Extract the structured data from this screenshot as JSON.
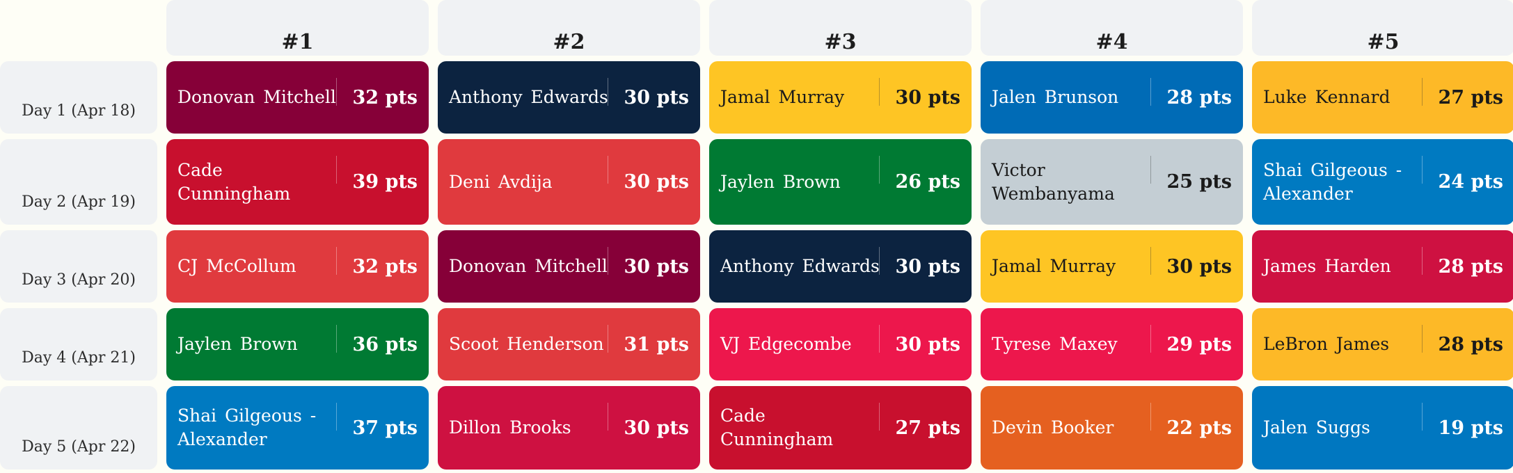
{
  "columns": [
    "#1",
    "#2",
    "#3",
    "#4",
    "#5"
  ],
  "rows": [
    {
      "day": "Day 1 (Apr 18)",
      "cells": [
        {
          "player": "Donovan Mitchell",
          "pts": "32 pts",
          "color": "#860038",
          "text_color": "dark"
        },
        {
          "player": "Anthony Edwards",
          "pts": "30 pts",
          "color": "#0c2340",
          "text_color": "dark"
        },
        {
          "player": "Jamal Murray",
          "pts": "30 pts",
          "color": "#fec524",
          "text_color": "light"
        },
        {
          "player": "Jalen Brunson",
          "pts": "28 pts",
          "color": "#006bb6",
          "text_color": "dark"
        },
        {
          "player": "Luke Kennard",
          "pts": "27 pts",
          "color": "#fdb927",
          "text_color": "light"
        }
      ]
    },
    {
      "day": "Day 2 (Apr 19)",
      "cells": [
        {
          "player": "Cade Cunningham",
          "pts": "39 pts",
          "color": "#c8102e",
          "text_color": "dark"
        },
        {
          "player": "Deni Avdija",
          "pts": "30 pts",
          "color": "#e03a3e",
          "text_color": "dark"
        },
        {
          "player": "Jaylen Brown",
          "pts": "26 pts",
          "color": "#007a33",
          "text_color": "dark"
        },
        {
          "player": "Victor Wembanyama",
          "pts": "25 pts",
          "color": "#c4ced4",
          "text_color": "light"
        },
        {
          "player": "Shai Gilgeous - Alexander",
          "pts": "24 pts",
          "color": "#007ac1",
          "text_color": "dark"
        }
      ]
    },
    {
      "day": "Day 3 (Apr 20)",
      "cells": [
        {
          "player": "CJ McCollum",
          "pts": "32 pts",
          "color": "#e03a3e",
          "text_color": "dark"
        },
        {
          "player": "Donovan Mitchell",
          "pts": "30 pts",
          "color": "#860038",
          "text_color": "dark"
        },
        {
          "player": "Anthony Edwards",
          "pts": "30 pts",
          "color": "#0c2340",
          "text_color": "dark"
        },
        {
          "player": "Jamal Murray",
          "pts": "30 pts",
          "color": "#fec524",
          "text_color": "light"
        },
        {
          "player": "James Harden",
          "pts": "28 pts",
          "color": "#ce1141",
          "text_color": "dark"
        }
      ]
    },
    {
      "day": "Day 4 (Apr 21)",
      "cells": [
        {
          "player": "Jaylen Brown",
          "pts": "36 pts",
          "color": "#007a33",
          "text_color": "dark"
        },
        {
          "player": "Scoot Henderson",
          "pts": "31 pts",
          "color": "#e03a3e",
          "text_color": "dark"
        },
        {
          "player": "VJ Edgecombe",
          "pts": "30 pts",
          "color": "#ed174c",
          "text_color": "dark"
        },
        {
          "player": "Tyrese Maxey",
          "pts": "29 pts",
          "color": "#ed174c",
          "text_color": "dark"
        },
        {
          "player": "LeBron James",
          "pts": "28 pts",
          "color": "#fdb927",
          "text_color": "light"
        }
      ]
    },
    {
      "day": "Day 5 (Apr 22)",
      "cells": [
        {
          "player": "Shai Gilgeous - Alexander",
          "pts": "37 pts",
          "color": "#007ac1",
          "text_color": "dark"
        },
        {
          "player": "Dillon Brooks",
          "pts": "30 pts",
          "color": "#ce1141",
          "text_color": "dark"
        },
        {
          "player": "Cade Cunningham",
          "pts": "27 pts",
          "color": "#c8102e",
          "text_color": "dark"
        },
        {
          "player": "Devin Booker",
          "pts": "22 pts",
          "color": "#e56020",
          "text_color": "dark"
        },
        {
          "player": "Jalen Suggs",
          "pts": "19 pts",
          "color": "#0077c0",
          "text_color": "dark"
        }
      ]
    }
  ]
}
